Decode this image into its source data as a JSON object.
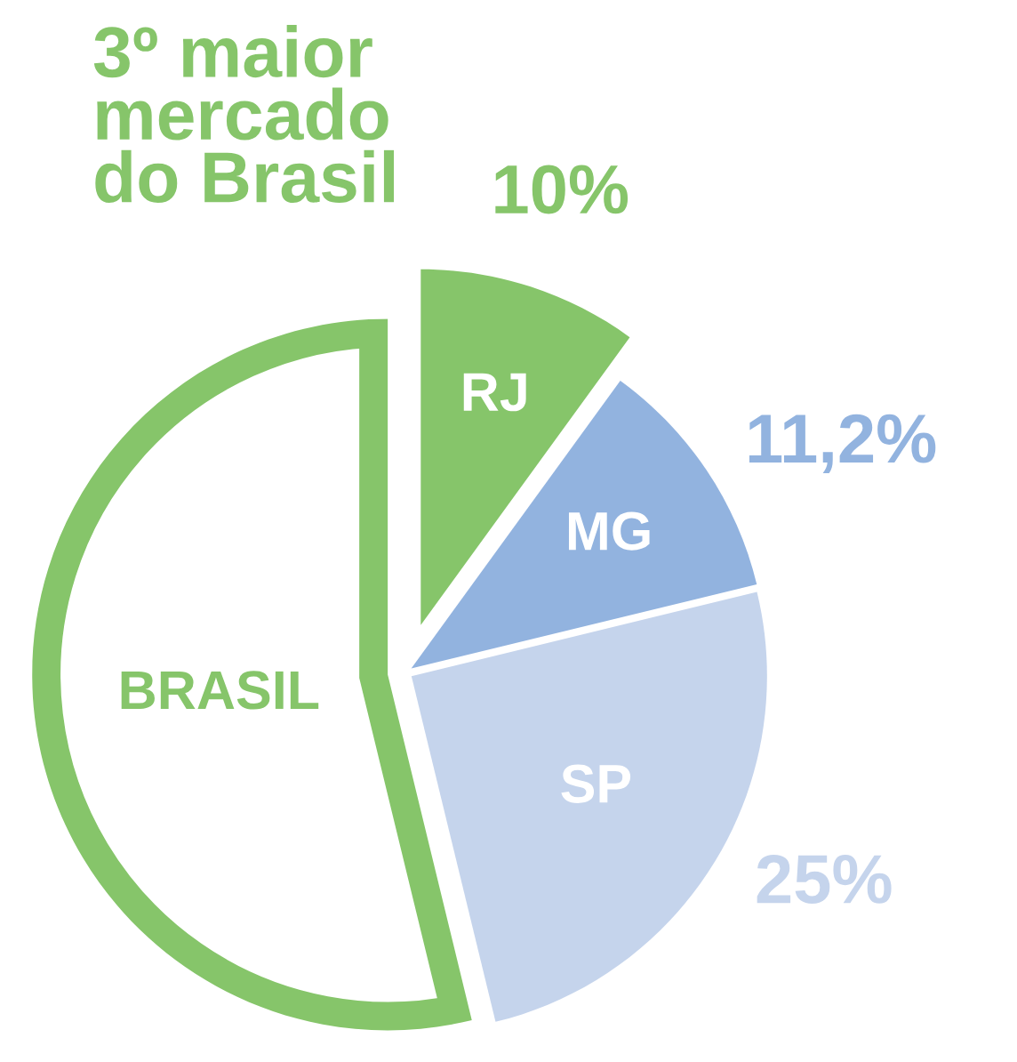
{
  "chart_data": {
    "type": "pie",
    "title": "3º maior\nmercado\ndo Brasil",
    "categories": [
      "RJ",
      "MG",
      "SP",
      "BRASIL"
    ],
    "values": [
      10,
      11.2,
      25,
      53.8
    ],
    "colors": [
      "#86c56a",
      "#92b3df",
      "#c5d4ec",
      "#ffffff"
    ],
    "value_labels": [
      "10%",
      "11,2%",
      "25%",
      null
    ]
  }
}
